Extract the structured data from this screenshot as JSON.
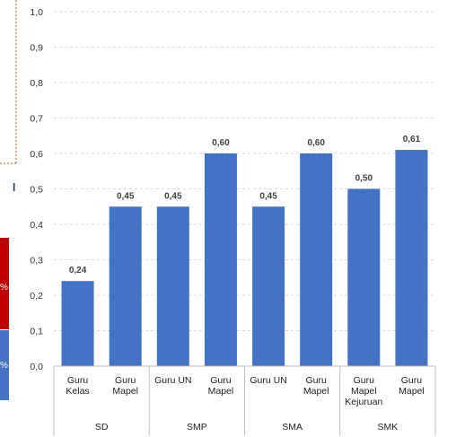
{
  "colors": {
    "bar": "#4472C4",
    "grid": "#D9D9D9",
    "axis": "#BFBFBF",
    "fragment_red": "#C00000",
    "fragment_blue": "#4472C4",
    "fragment_dash": "#C55A11",
    "fragment_text": "#1F3864"
  },
  "left_fragments": {
    "title_glyph": "l",
    "pct_top": "%",
    "pct_bottom": "%"
  },
  "chart_data": {
    "type": "bar",
    "title": "",
    "xlabel": "",
    "ylabel": "",
    "ylim": [
      0,
      1.0
    ],
    "yticks": [
      "0,0",
      "0,1",
      "0,2",
      "0,3",
      "0,4",
      "0,5",
      "0,6",
      "0,7",
      "0,8",
      "0,9",
      "1,0"
    ],
    "grid": true,
    "legend": "none",
    "groups": [
      "SD",
      "SMP",
      "SMA",
      "SMK"
    ],
    "categories": [
      {
        "lines": [
          "Guru",
          "Kelas"
        ],
        "group": 0
      },
      {
        "lines": [
          "Guru",
          "Mapel"
        ],
        "group": 0
      },
      {
        "lines": [
          "Guru UN"
        ],
        "group": 1
      },
      {
        "lines": [
          "Guru",
          "Mapel"
        ],
        "group": 1
      },
      {
        "lines": [
          "Guru UN"
        ],
        "group": 2
      },
      {
        "lines": [
          "Guru",
          "Mapel"
        ],
        "group": 2
      },
      {
        "lines": [
          "Guru",
          "Mapel",
          "Kejuruan"
        ],
        "group": 3
      },
      {
        "lines": [
          "Guru",
          "Mapel"
        ],
        "group": 3
      }
    ],
    "values": [
      0.24,
      0.45,
      0.45,
      0.6,
      0.45,
      0.6,
      0.5,
      0.61
    ],
    "value_labels": [
      "0,24",
      "0,45",
      "0,45",
      "0,60",
      "0,45",
      "0,60",
      "0,50",
      "0,61"
    ]
  }
}
